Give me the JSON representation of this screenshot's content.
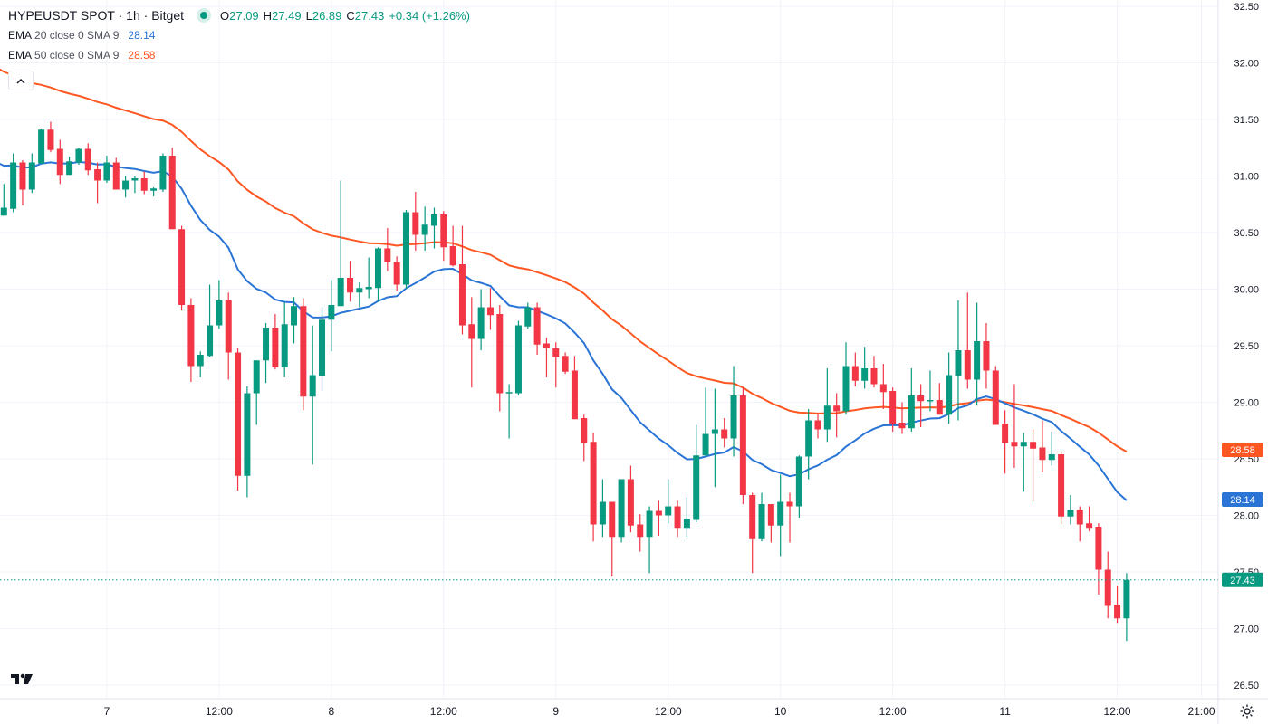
{
  "header": {
    "title": "HYPEUSDT SPOT · 1h · Bitget",
    "ohlc": {
      "o_label": "O",
      "o": "27.09",
      "h_label": "H",
      "h": "27.49",
      "l_label": "L",
      "l": "26.89",
      "c_label": "C",
      "c": "27.43",
      "change": "+0.34 (+1.26%)"
    },
    "indicators": [
      {
        "name": "EMA",
        "params": "20 close 0 SMA 9",
        "value": "28.14",
        "color": "#2a74d6"
      },
      {
        "name": "EMA",
        "params": "50 close 0 SMA 9",
        "value": "28.58",
        "color": "#ff5722"
      }
    ],
    "collapse_icon": "chevron-up-icon"
  },
  "colors": {
    "up": "#089981",
    "down": "#f23645",
    "ema20": "#2a74d6",
    "ema50": "#ff5722",
    "grid": "#f0f3fa"
  },
  "chart_data": {
    "type": "candlestick",
    "symbol": "HYPEUSDT",
    "interval": "1h",
    "ylim": [
      26.45,
      32.6
    ],
    "y_ticks": [
      "32.50",
      "32.00",
      "31.50",
      "31.00",
      "30.50",
      "30.00",
      "29.50",
      "29.00",
      "28.50",
      "28.00",
      "27.50",
      "27.00",
      "26.50"
    ],
    "x_ticks": [
      {
        "label": "7",
        "index": 11
      },
      {
        "label": "12:00",
        "index": 23
      },
      {
        "label": "8",
        "index": 35
      },
      {
        "label": "12:00",
        "index": 47
      },
      {
        "label": "9",
        "index": 59
      },
      {
        "label": "12:00",
        "index": 71
      },
      {
        "label": "10",
        "index": 83
      },
      {
        "label": "12:00",
        "index": 95
      },
      {
        "label": "11",
        "index": 107
      },
      {
        "label": "12:00",
        "index": 119
      },
      {
        "label": "21:00",
        "index": 128
      }
    ],
    "last_price": "27.43",
    "ema20_last": "28.14",
    "ema50_last": "28.58",
    "ema20_start": 31.13,
    "ema50_start": 31.97,
    "candles_ohlc": [
      [
        30.65,
        30.93,
        30.65,
        30.72
      ],
      [
        30.71,
        31.2,
        30.68,
        31.12
      ],
      [
        31.12,
        31.14,
        30.74,
        30.88
      ],
      [
        30.88,
        31.2,
        30.85,
        31.12
      ],
      [
        31.11,
        31.42,
        31.11,
        31.41
      ],
      [
        31.41,
        31.48,
        31.21,
        31.23
      ],
      [
        31.24,
        31.32,
        30.93,
        31.01
      ],
      [
        31.01,
        31.17,
        31.01,
        31.13
      ],
      [
        31.12,
        31.25,
        31.1,
        31.24
      ],
      [
        31.24,
        31.29,
        31.01,
        31.05
      ],
      [
        31.06,
        31.12,
        30.76,
        30.96
      ],
      [
        30.96,
        31.18,
        30.94,
        31.12
      ],
      [
        31.12,
        31.16,
        30.88,
        30.88
      ],
      [
        30.88,
        31.0,
        30.81,
        30.96
      ],
      [
        30.96,
        31.0,
        30.85,
        30.98
      ],
      [
        30.98,
        31.04,
        30.84,
        30.87
      ],
      [
        30.87,
        30.9,
        30.82,
        30.89
      ],
      [
        30.88,
        31.2,
        30.86,
        31.18
      ],
      [
        31.18,
        31.25,
        30.53,
        30.53
      ],
      [
        30.53,
        30.56,
        29.81,
        29.86
      ],
      [
        29.86,
        29.92,
        29.18,
        29.32
      ],
      [
        29.32,
        29.45,
        29.22,
        29.42
      ],
      [
        29.41,
        30.04,
        29.4,
        29.68
      ],
      [
        29.68,
        30.08,
        29.65,
        29.9
      ],
      [
        29.9,
        29.97,
        29.2,
        29.44
      ],
      [
        29.44,
        29.48,
        28.22,
        28.35
      ],
      [
        28.35,
        29.14,
        28.16,
        29.08
      ],
      [
        29.08,
        29.37,
        28.8,
        29.37
      ],
      [
        29.37,
        29.7,
        29.17,
        29.66
      ],
      [
        29.66,
        29.78,
        29.29,
        29.31
      ],
      [
        29.31,
        29.88,
        29.22,
        29.69
      ],
      [
        29.68,
        29.93,
        29.52,
        29.85
      ],
      [
        29.85,
        29.92,
        28.93,
        29.05
      ],
      [
        29.05,
        29.68,
        28.45,
        29.24
      ],
      [
        29.23,
        29.84,
        29.1,
        29.73
      ],
      [
        29.73,
        30.08,
        29.45,
        29.86
      ],
      [
        29.85,
        30.96,
        29.85,
        30.1
      ],
      [
        30.1,
        30.25,
        29.89,
        29.97
      ],
      [
        29.97,
        30.06,
        29.84,
        30.01
      ],
      [
        30.0,
        30.28,
        29.92,
        30.02
      ],
      [
        30.01,
        30.37,
        29.89,
        30.36
      ],
      [
        30.36,
        30.54,
        30.16,
        30.24
      ],
      [
        30.24,
        30.29,
        29.98,
        30.04
      ],
      [
        30.04,
        30.7,
        30.0,
        30.68
      ],
      [
        30.68,
        30.86,
        30.34,
        30.48
      ],
      [
        30.48,
        30.73,
        30.34,
        30.57
      ],
      [
        30.56,
        30.72,
        30.36,
        30.66
      ],
      [
        30.66,
        30.69,
        30.25,
        30.37
      ],
      [
        30.38,
        30.56,
        30.2,
        30.21
      ],
      [
        30.22,
        30.56,
        29.6,
        29.68
      ],
      [
        29.69,
        29.93,
        29.13,
        29.56
      ],
      [
        29.56,
        30.0,
        29.46,
        29.84
      ],
      [
        29.84,
        30.01,
        29.64,
        29.77
      ],
      [
        29.78,
        29.86,
        28.92,
        29.08
      ],
      [
        29.08,
        29.16,
        28.68,
        29.09
      ],
      [
        29.08,
        29.72,
        29.06,
        29.68
      ],
      [
        29.67,
        29.88,
        29.65,
        29.84
      ],
      [
        29.84,
        29.88,
        29.42,
        29.51
      ],
      [
        29.52,
        29.57,
        29.22,
        29.48
      ],
      [
        29.48,
        29.53,
        29.13,
        29.4
      ],
      [
        29.41,
        29.44,
        29.25,
        29.27
      ],
      [
        29.28,
        29.41,
        28.85,
        28.85
      ],
      [
        28.86,
        28.89,
        28.48,
        28.64
      ],
      [
        28.65,
        28.73,
        27.77,
        27.92
      ],
      [
        27.92,
        28.32,
        27.81,
        28.12
      ],
      [
        28.12,
        28.12,
        27.46,
        27.81
      ],
      [
        27.81,
        28.32,
        27.76,
        28.32
      ],
      [
        28.32,
        28.44,
        27.85,
        27.91
      ],
      [
        27.92,
        28.01,
        27.68,
        27.81
      ],
      [
        27.81,
        28.08,
        27.49,
        28.04
      ],
      [
        28.04,
        28.13,
        27.82,
        28.0
      ],
      [
        28.0,
        28.32,
        27.93,
        28.08
      ],
      [
        28.08,
        28.13,
        27.81,
        27.89
      ],
      [
        27.89,
        28.16,
        27.81,
        27.97
      ],
      [
        27.96,
        28.8,
        27.94,
        28.53
      ],
      [
        28.53,
        29.13,
        28.53,
        28.72
      ],
      [
        28.72,
        29.12,
        28.25,
        28.76
      ],
      [
        28.76,
        28.86,
        28.6,
        28.68
      ],
      [
        28.68,
        29.32,
        28.52,
        29.06
      ],
      [
        29.06,
        29.13,
        28.1,
        28.18
      ],
      [
        28.18,
        28.2,
        27.49,
        27.79
      ],
      [
        27.79,
        28.2,
        27.77,
        28.1
      ],
      [
        28.1,
        28.1,
        27.76,
        27.91
      ],
      [
        27.91,
        28.36,
        27.64,
        28.12
      ],
      [
        28.12,
        28.2,
        27.76,
        28.08
      ],
      [
        28.08,
        28.53,
        27.98,
        28.52
      ],
      [
        28.52,
        28.94,
        28.32,
        28.84
      ],
      [
        28.84,
        28.9,
        28.68,
        28.76
      ],
      [
        28.76,
        29.3,
        28.65,
        28.97
      ],
      [
        28.97,
        29.08,
        28.69,
        28.92
      ],
      [
        28.92,
        29.53,
        28.89,
        29.32
      ],
      [
        29.32,
        29.44,
        29.14,
        29.19
      ],
      [
        29.19,
        29.49,
        29.12,
        29.3
      ],
      [
        29.3,
        29.41,
        29.13,
        29.16
      ],
      [
        29.16,
        29.34,
        28.94,
        29.09
      ],
      [
        29.1,
        29.13,
        28.74,
        28.81
      ],
      [
        28.82,
        29.0,
        28.72,
        28.77
      ],
      [
        28.77,
        29.3,
        28.74,
        29.06
      ],
      [
        29.06,
        29.16,
        28.78,
        29.01
      ],
      [
        29.01,
        29.28,
        28.92,
        29.02
      ],
      [
        29.02,
        29.17,
        28.89,
        28.89
      ],
      [
        28.89,
        29.44,
        28.81,
        29.24
      ],
      [
        29.23,
        29.9,
        28.84,
        29.46
      ],
      [
        29.46,
        29.97,
        29.12,
        29.2
      ],
      [
        29.2,
        29.88,
        28.97,
        29.54
      ],
      [
        29.54,
        29.7,
        29.12,
        29.28
      ],
      [
        29.28,
        29.32,
        28.8,
        28.8
      ],
      [
        28.81,
        28.93,
        28.37,
        28.64
      ],
      [
        28.65,
        29.16,
        28.42,
        28.61
      ],
      [
        28.61,
        28.73,
        28.21,
        28.65
      ],
      [
        28.65,
        28.76,
        28.12,
        28.59
      ],
      [
        28.6,
        28.84,
        28.38,
        28.49
      ],
      [
        28.49,
        28.74,
        28.44,
        28.54
      ],
      [
        28.54,
        28.57,
        27.92,
        27.99
      ],
      [
        27.99,
        28.18,
        27.92,
        28.05
      ],
      [
        28.05,
        28.08,
        27.77,
        27.92
      ],
      [
        27.93,
        28.08,
        27.86,
        27.89
      ],
      [
        27.9,
        27.93,
        27.3,
        27.52
      ],
      [
        27.52,
        27.68,
        27.09,
        27.2
      ],
      [
        27.21,
        27.38,
        27.05,
        27.09
      ],
      [
        27.09,
        27.49,
        26.89,
        27.43
      ]
    ]
  }
}
